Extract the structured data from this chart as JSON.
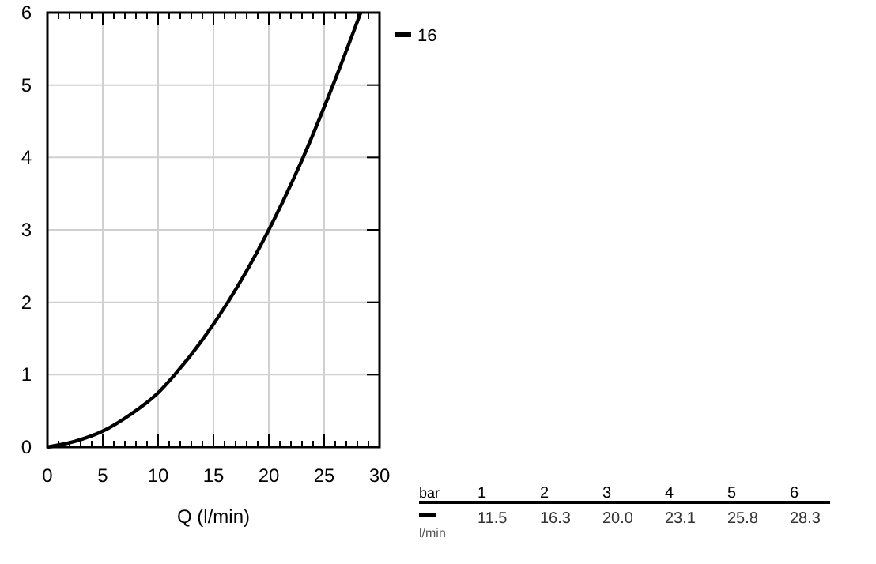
{
  "chart_data": [
    {
      "type": "line",
      "xlabel": "Q (l/min)",
      "xlim": [
        0,
        30
      ],
      "ylim": [
        0,
        6
      ],
      "xticks": [
        0,
        {
          "value": 1,
          "label": null
        },
        {
          "value": 2,
          "label": null
        },
        {
          "value": 3,
          "label": null
        },
        {
          "value": 4,
          "label": null
        },
        5,
        {
          "value": 6,
          "label": null
        },
        {
          "value": 7,
          "label": null
        },
        {
          "value": 8,
          "label": null
        },
        {
          "value": 9,
          "label": null
        },
        10,
        {
          "value": 11,
          "label": null
        },
        {
          "value": 12,
          "label": null
        },
        {
          "value": 13,
          "label": null
        },
        {
          "value": 14,
          "label": null
        },
        15,
        {
          "value": 16,
          "label": null
        },
        {
          "value": 17,
          "label": null
        },
        {
          "value": 18,
          "label": null
        },
        {
          "value": 19,
          "label": null
        },
        20,
        {
          "value": 21,
          "label": null
        },
        {
          "value": 22,
          "label": null
        },
        {
          "value": 23,
          "label": null
        },
        {
          "value": 24,
          "label": null
        },
        25,
        {
          "value": 26,
          "label": null
        },
        {
          "value": 27,
          "label": null
        },
        {
          "value": 28,
          "label": null
        },
        {
          "value": 29,
          "label": null
        },
        30
      ],
      "yticks": [
        0,
        1,
        2,
        3,
        4,
        5,
        6
      ],
      "grid": true,
      "legend": "top right",
      "marker": "none",
      "line_style": "solid",
      "annotations": [
        "bar",
        "1",
        "2",
        "3",
        "4",
        "5",
        "6",
        "l/min",
        "11.5",
        "16.3",
        "20.0",
        "23.1",
        "25.8",
        "28.3"
      ],
      "series": [
        {
          "name": "16",
          "color": "#000000",
          "x": [
            0,
            2.5,
            5,
            7.5,
            10,
            11.5,
            16.3,
            20.0,
            23.1,
            25.8,
            28.3
          ],
          "values": [
            0,
            0.08,
            0.22,
            0.45,
            0.75,
            1,
            2,
            3,
            4,
            5,
            6
          ]
        }
      ]
    }
  ]
}
